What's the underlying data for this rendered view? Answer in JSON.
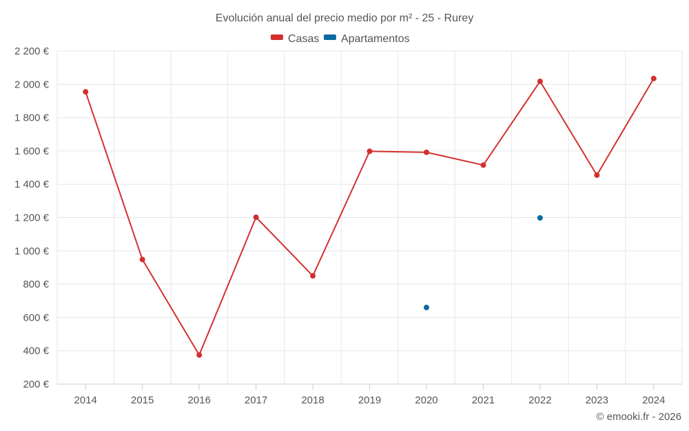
{
  "chart_data": {
    "type": "line",
    "title": "Evolución anual del precio medio por m² - 25 - Rurey",
    "categories": [
      "2014",
      "2015",
      "2016",
      "2017",
      "2018",
      "2019",
      "2020",
      "2021",
      "2022",
      "2023",
      "2024"
    ],
    "ylim": [
      200,
      2200
    ],
    "yticks": [
      200,
      400,
      600,
      800,
      1000,
      1200,
      1400,
      1600,
      1800,
      2000,
      2200
    ],
    "ytick_labels": [
      "200 €",
      "400 €",
      "600 €",
      "800 €",
      "1 000 €",
      "1 200 €",
      "1 400 €",
      "1 600 €",
      "1 800 €",
      "2 000 €",
      "2 200 €"
    ],
    "grid": true,
    "legend_position": "top-center",
    "series": [
      {
        "name": "Casas",
        "color": "#d32f2f",
        "values": [
          1955,
          948,
          375,
          1202,
          850,
          1598,
          1592,
          1515,
          2018,
          1455,
          2035
        ]
      },
      {
        "name": "Apartamentos",
        "color": "#0b6aa2",
        "values": [
          null,
          null,
          null,
          null,
          null,
          null,
          660,
          null,
          1198,
          null,
          null
        ]
      }
    ]
  },
  "credit": "© emooki.fr - 2026"
}
